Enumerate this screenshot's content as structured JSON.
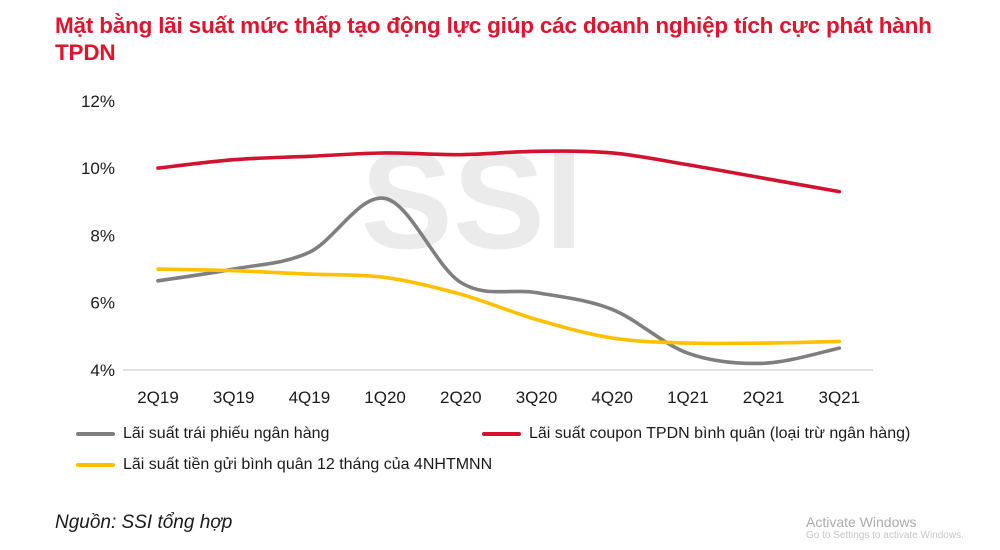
{
  "header": {
    "title": "Mặt bằng lãi suất mức thấp tạo động lực giúp các doanh nghiệp tích cực phát hành TPDN"
  },
  "watermark": "SSI",
  "colors": {
    "title": "#E2142D",
    "series_gray": "#7F7F7F",
    "series_red": "#D2122E",
    "series_yellow": "#FFC000",
    "watermark": "#EBEBEB",
    "baseline": "#D9D9D9",
    "axis_text": "#1A1A1A"
  },
  "chart_data": {
    "type": "line",
    "title": "Mặt bằng lãi suất mức thấp tạo động lực giúp các doanh nghiệp tích cực phát hành TPDN",
    "categories": [
      "2Q19",
      "3Q19",
      "4Q19",
      "1Q20",
      "2Q20",
      "3Q20",
      "4Q20",
      "1Q21",
      "2Q21",
      "3Q21"
    ],
    "series": [
      {
        "name": "Lãi suất trái phiếu ngân hàng",
        "color": "#7F7F7F",
        "values": [
          6.65,
          7.0,
          7.5,
          9.1,
          6.6,
          6.3,
          5.8,
          4.5,
          4.2,
          4.65
        ]
      },
      {
        "name": "Lãi suất coupon TPDN bình quân (loại trừ ngân hàng)",
        "color": "#D2122E",
        "values": [
          10.0,
          10.25,
          10.35,
          10.45,
          10.4,
          10.5,
          10.45,
          10.1,
          9.7,
          9.3
        ]
      },
      {
        "name": "Lãi suất tiền gửi bình quân 12 tháng của 4NHTMNN",
        "color": "#FFC000",
        "values": [
          7.0,
          6.95,
          6.85,
          6.75,
          6.25,
          5.5,
          4.95,
          4.8,
          4.8,
          4.85
        ]
      }
    ],
    "xlabel": "",
    "ylabel": "",
    "ylim": [
      4,
      12
    ],
    "yticks": [
      4,
      6,
      8,
      10,
      12
    ],
    "ytick_labels": [
      "4%",
      "6%",
      "8%",
      "10%",
      "12%"
    ],
    "grid": false,
    "legend_position": "bottom"
  },
  "footer": {
    "source": "Nguồn: SSI tổng hợp",
    "activate_line1": "Activate Windows",
    "activate_line2": "Go to Settings to activate Windows."
  }
}
